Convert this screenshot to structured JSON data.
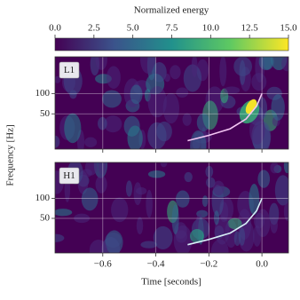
{
  "chart_data": {
    "type": "spectrogram",
    "colorbar": {
      "label": "Normalized energy",
      "lim": [
        0,
        15
      ],
      "ticks": [
        {
          "value": 0,
          "label": "0.0"
        },
        {
          "value": 2.5,
          "label": "2.5"
        },
        {
          "value": 5,
          "label": "5.0"
        },
        {
          "value": 7.5,
          "label": "7.5"
        },
        {
          "value": 10,
          "label": "10.0"
        },
        {
          "value": 12.5,
          "label": "12.5"
        },
        {
          "value": 15,
          "label": "15.0"
        }
      ]
    },
    "xlabel": "Time [seconds]",
    "ylabel": "Frequency [Hz]",
    "xlim": [
      -0.78,
      0.1
    ],
    "xticks": [
      {
        "value": -0.6,
        "label": "−0.6"
      },
      {
        "value": -0.4,
        "label": "−0.4"
      },
      {
        "value": -0.2,
        "label": "−0.2"
      },
      {
        "value": 0,
        "label": "0.0"
      }
    ],
    "ylim": [
      15,
      350
    ],
    "yticks": [
      50,
      100
    ],
    "log_y": true,
    "grid": true,
    "series": [
      {
        "name": "L1",
        "color": "#f4c6f4",
        "x": [
          -0.28,
          -0.2,
          -0.12,
          -0.06,
          -0.02,
          0.0
        ],
        "values": [
          20,
          24,
          30,
          42,
          65,
          100
        ]
      },
      {
        "name": "H1",
        "color": "#d6eef6",
        "x": [
          -0.28,
          -0.2,
          -0.12,
          -0.06,
          -0.02,
          0.0
        ],
        "values": [
          20,
          24,
          30,
          42,
          65,
          100
        ]
      }
    ]
  }
}
